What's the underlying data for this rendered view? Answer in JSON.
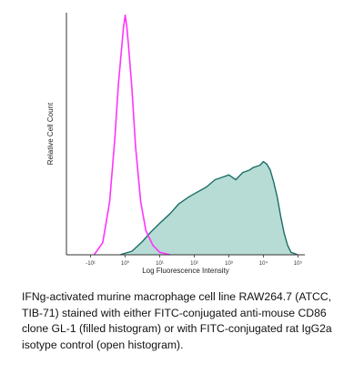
{
  "chart_data": {
    "type": "area",
    "xlabel": "Log Fluorescence Intensity",
    "ylabel": "Relative Cell Count",
    "x_scale": "log",
    "x_ticks": [
      {
        "value": -1,
        "label": "-10¹"
      },
      {
        "value": 0,
        "label": "10⁰"
      },
      {
        "value": 1,
        "label": "10¹"
      },
      {
        "value": 2,
        "label": "10²"
      },
      {
        "value": 3,
        "label": "10³"
      },
      {
        "value": 4,
        "label": "10⁴"
      },
      {
        "value": 5,
        "label": "10⁵"
      }
    ],
    "xlim": [
      -1.7,
      5.2
    ],
    "ylim": [
      0,
      100
    ],
    "grid": false,
    "series": [
      {
        "name": "FITC-conjugated anti-mouse CD86 clone GL-1",
        "style": "filled",
        "fill": "#b7dcd5",
        "stroke": "#1a6e66",
        "x": [
          -0.15,
          0.2,
          0.5,
          0.75,
          1.0,
          1.3,
          1.55,
          1.85,
          2.1,
          2.35,
          2.6,
          2.8,
          3.0,
          3.2,
          3.4,
          3.6,
          3.7,
          3.8,
          3.9,
          4.0,
          4.1,
          4.2,
          4.3,
          4.4,
          4.5,
          4.6,
          4.7,
          4.8,
          5.0
        ],
        "y": [
          0,
          1.5,
          5.5,
          9.5,
          13,
          17,
          21,
          24,
          26,
          28,
          31,
          32,
          33,
          31,
          34,
          35,
          36,
          36.5,
          37,
          38.5,
          37.5,
          35,
          30,
          24,
          16,
          9,
          4,
          1,
          0
        ]
      },
      {
        "name": "FITC-conjugated rat IgG2a isotype control",
        "style": "open",
        "stroke": "#ff33ff",
        "x": [
          -0.9,
          -0.65,
          -0.45,
          -0.3,
          -0.2,
          -0.1,
          -0.05,
          0.0,
          0.05,
          0.1,
          0.2,
          0.3,
          0.45,
          0.6,
          0.8,
          1.0,
          1.3
        ],
        "y": [
          0,
          5,
          22,
          48,
          70,
          86,
          94,
          99,
          94,
          86,
          68,
          45,
          22,
          10,
          4,
          1,
          0
        ]
      }
    ]
  },
  "caption": "IFNg-activated murine macrophage cell line RAW264.7 (ATCC, TIB-71) stained with either FITC-conjugated anti-mouse CD86 clone GL-1 (filled histogram) or with FITC-conjugated rat IgG2a isotype control (open histogram)."
}
